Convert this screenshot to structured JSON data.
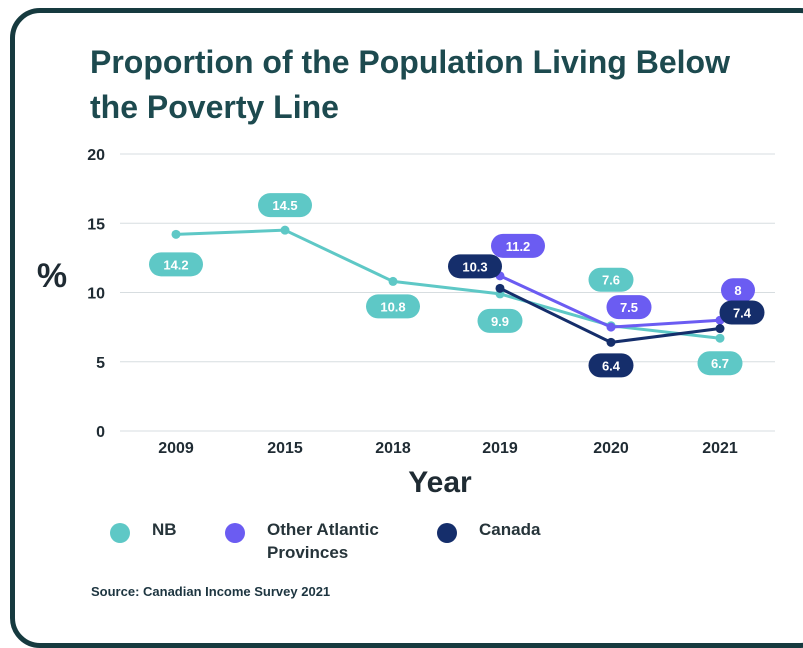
{
  "chart_data": {
    "type": "line",
    "title": "Proportion of the Population Living Below the Poverty Line",
    "xlabel": "Year",
    "ylabel": "%",
    "categories": [
      "2009",
      "2015",
      "2018",
      "2019",
      "2020",
      "2021"
    ],
    "ylim": [
      0,
      20
    ],
    "yticks": [
      0,
      5,
      10,
      15,
      20
    ],
    "grid": true,
    "legend_position": "bottom",
    "series": [
      {
        "name": "NB",
        "color": "#5ec8c6",
        "values": [
          14.2,
          14.5,
          10.8,
          9.9,
          7.6,
          6.7
        ]
      },
      {
        "name": "Other Atlantic Provinces",
        "color": "#6b5cf2",
        "values": [
          null,
          null,
          null,
          11.2,
          7.5,
          8
        ]
      },
      {
        "name": "Canada",
        "color": "#152e6b",
        "values": [
          null,
          null,
          null,
          10.3,
          6.4,
          7.4
        ]
      }
    ]
  },
  "legend": {
    "nb": "NB",
    "other_atlantic_line1": "Other Atlantic",
    "other_atlantic_line2": "Provinces",
    "canada": "Canada"
  },
  "source": "Source: Canadian Income Survey 2021"
}
